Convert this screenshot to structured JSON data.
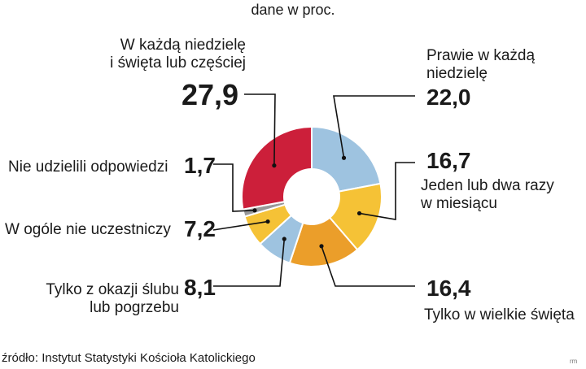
{
  "chart_data": {
    "type": "pie",
    "subtitle": "dane w proc.",
    "slices": [
      {
        "label_lines": [
          "Prawie w każdą",
          "niedzielę"
        ],
        "value": 22.0,
        "value_text": "22,0",
        "color": "#9ec3e0"
      },
      {
        "label_lines": [
          "Jeden lub dwa razy",
          "w miesiącu"
        ],
        "value": 16.7,
        "value_text": "16,7",
        "color": "#f5c236"
      },
      {
        "label_lines": [
          "Tylko w wielkie święta"
        ],
        "value": 16.4,
        "value_text": "16,4",
        "color": "#eb9e2a"
      },
      {
        "label_lines": [
          "Tylko z okazji ślubu",
          "lub pogrzebu"
        ],
        "value": 8.1,
        "value_text": "8,1",
        "color": "#9ec3e0"
      },
      {
        "label_lines": [
          "W ogóle nie uczestniczy"
        ],
        "value": 7.2,
        "value_text": "7,2",
        "color": "#f5c236"
      },
      {
        "label_lines": [
          "Nie udzielili odpowiedzi"
        ],
        "value": 1.7,
        "value_text": "1,7",
        "color": "#999999"
      },
      {
        "label_lines": [
          "W każdą niedzielę",
          "i święta lub częściej"
        ],
        "value": 27.9,
        "value_text": "27,9",
        "color": "#cc1f3a"
      }
    ],
    "source": "źródło: Instytut Statystyki Kościoła Katolickiego",
    "credit": "rm"
  }
}
